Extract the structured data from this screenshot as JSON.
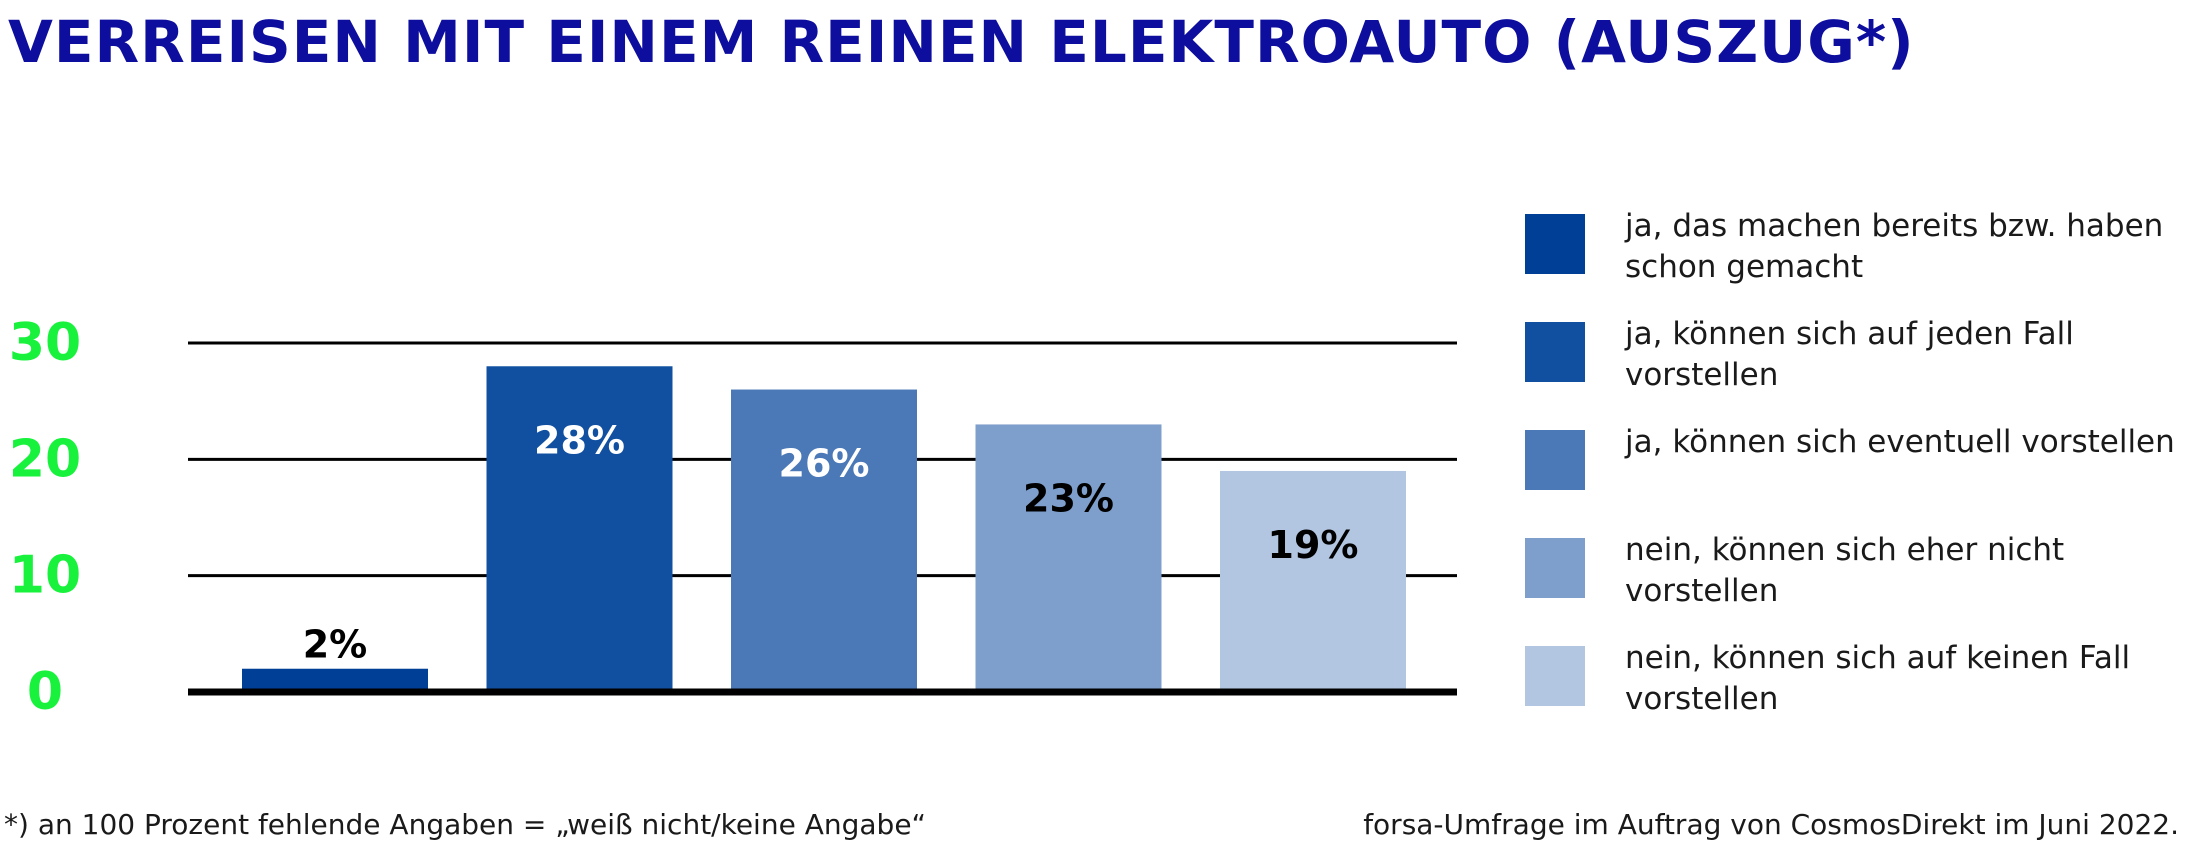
{
  "title": "VERREISEN MIT EINEM REINEN ELEKTROAUTO (AUSZUG*)",
  "footnote": "*) an 100 Prozent fehlende Angaben = „weiß nicht/keine Angabe“",
  "source": "forsa-Umfrage im Auftrag von CosmosDirekt im Juni 2022.",
  "colors": {
    "title": "#0d0d9e",
    "tick": "#19f23c",
    "axis": "#000000"
  },
  "chart_data": {
    "type": "bar",
    "title": "VERREISEN MIT EINEM REINEN ELEKTROAUTO (AUSZUG*)",
    "xlabel": "",
    "ylabel": "",
    "ylim": [
      0,
      30
    ],
    "yticks": [
      "0",
      "10",
      "20",
      "30"
    ],
    "grid": true,
    "legend_position": "right",
    "categories": [
      "ja, das machen bereits bzw. haben schon gemacht",
      "ja, können sich auf jeden Fall vorstellen",
      "ja, können sich eventuell vorstellen",
      "nein, können sich eher nicht vorstellen",
      "nein, können sich auf keinen Fall vorstellen"
    ],
    "values": [
      2,
      28,
      26,
      23,
      19
    ],
    "value_labels": [
      "2%",
      "28%",
      "26%",
      "23%",
      "19%"
    ],
    "bar_colors": [
      "#003f96",
      "#1150a0",
      "#4b78b6",
      "#7e9fcc",
      "#b3c6e1"
    ],
    "label_colors": [
      "#000000",
      "#ffffff",
      "#ffffff",
      "#000000",
      "#000000"
    ]
  },
  "legend": {
    "items": [
      {
        "label": "ja, das machen bereits bzw. haben schon gemacht",
        "color": "#003f96"
      },
      {
        "label": "ja, können sich auf jeden Fall vorstellen",
        "color": "#1150a0"
      },
      {
        "label": "ja, können sich eventuell vorstellen",
        "color": "#4b78b6"
      },
      {
        "label": "nein, können sich eher nicht vorstellen",
        "color": "#7e9fcc"
      },
      {
        "label": "nein, können sich auf keinen Fall vorstellen",
        "color": "#b3c6e1"
      }
    ]
  }
}
